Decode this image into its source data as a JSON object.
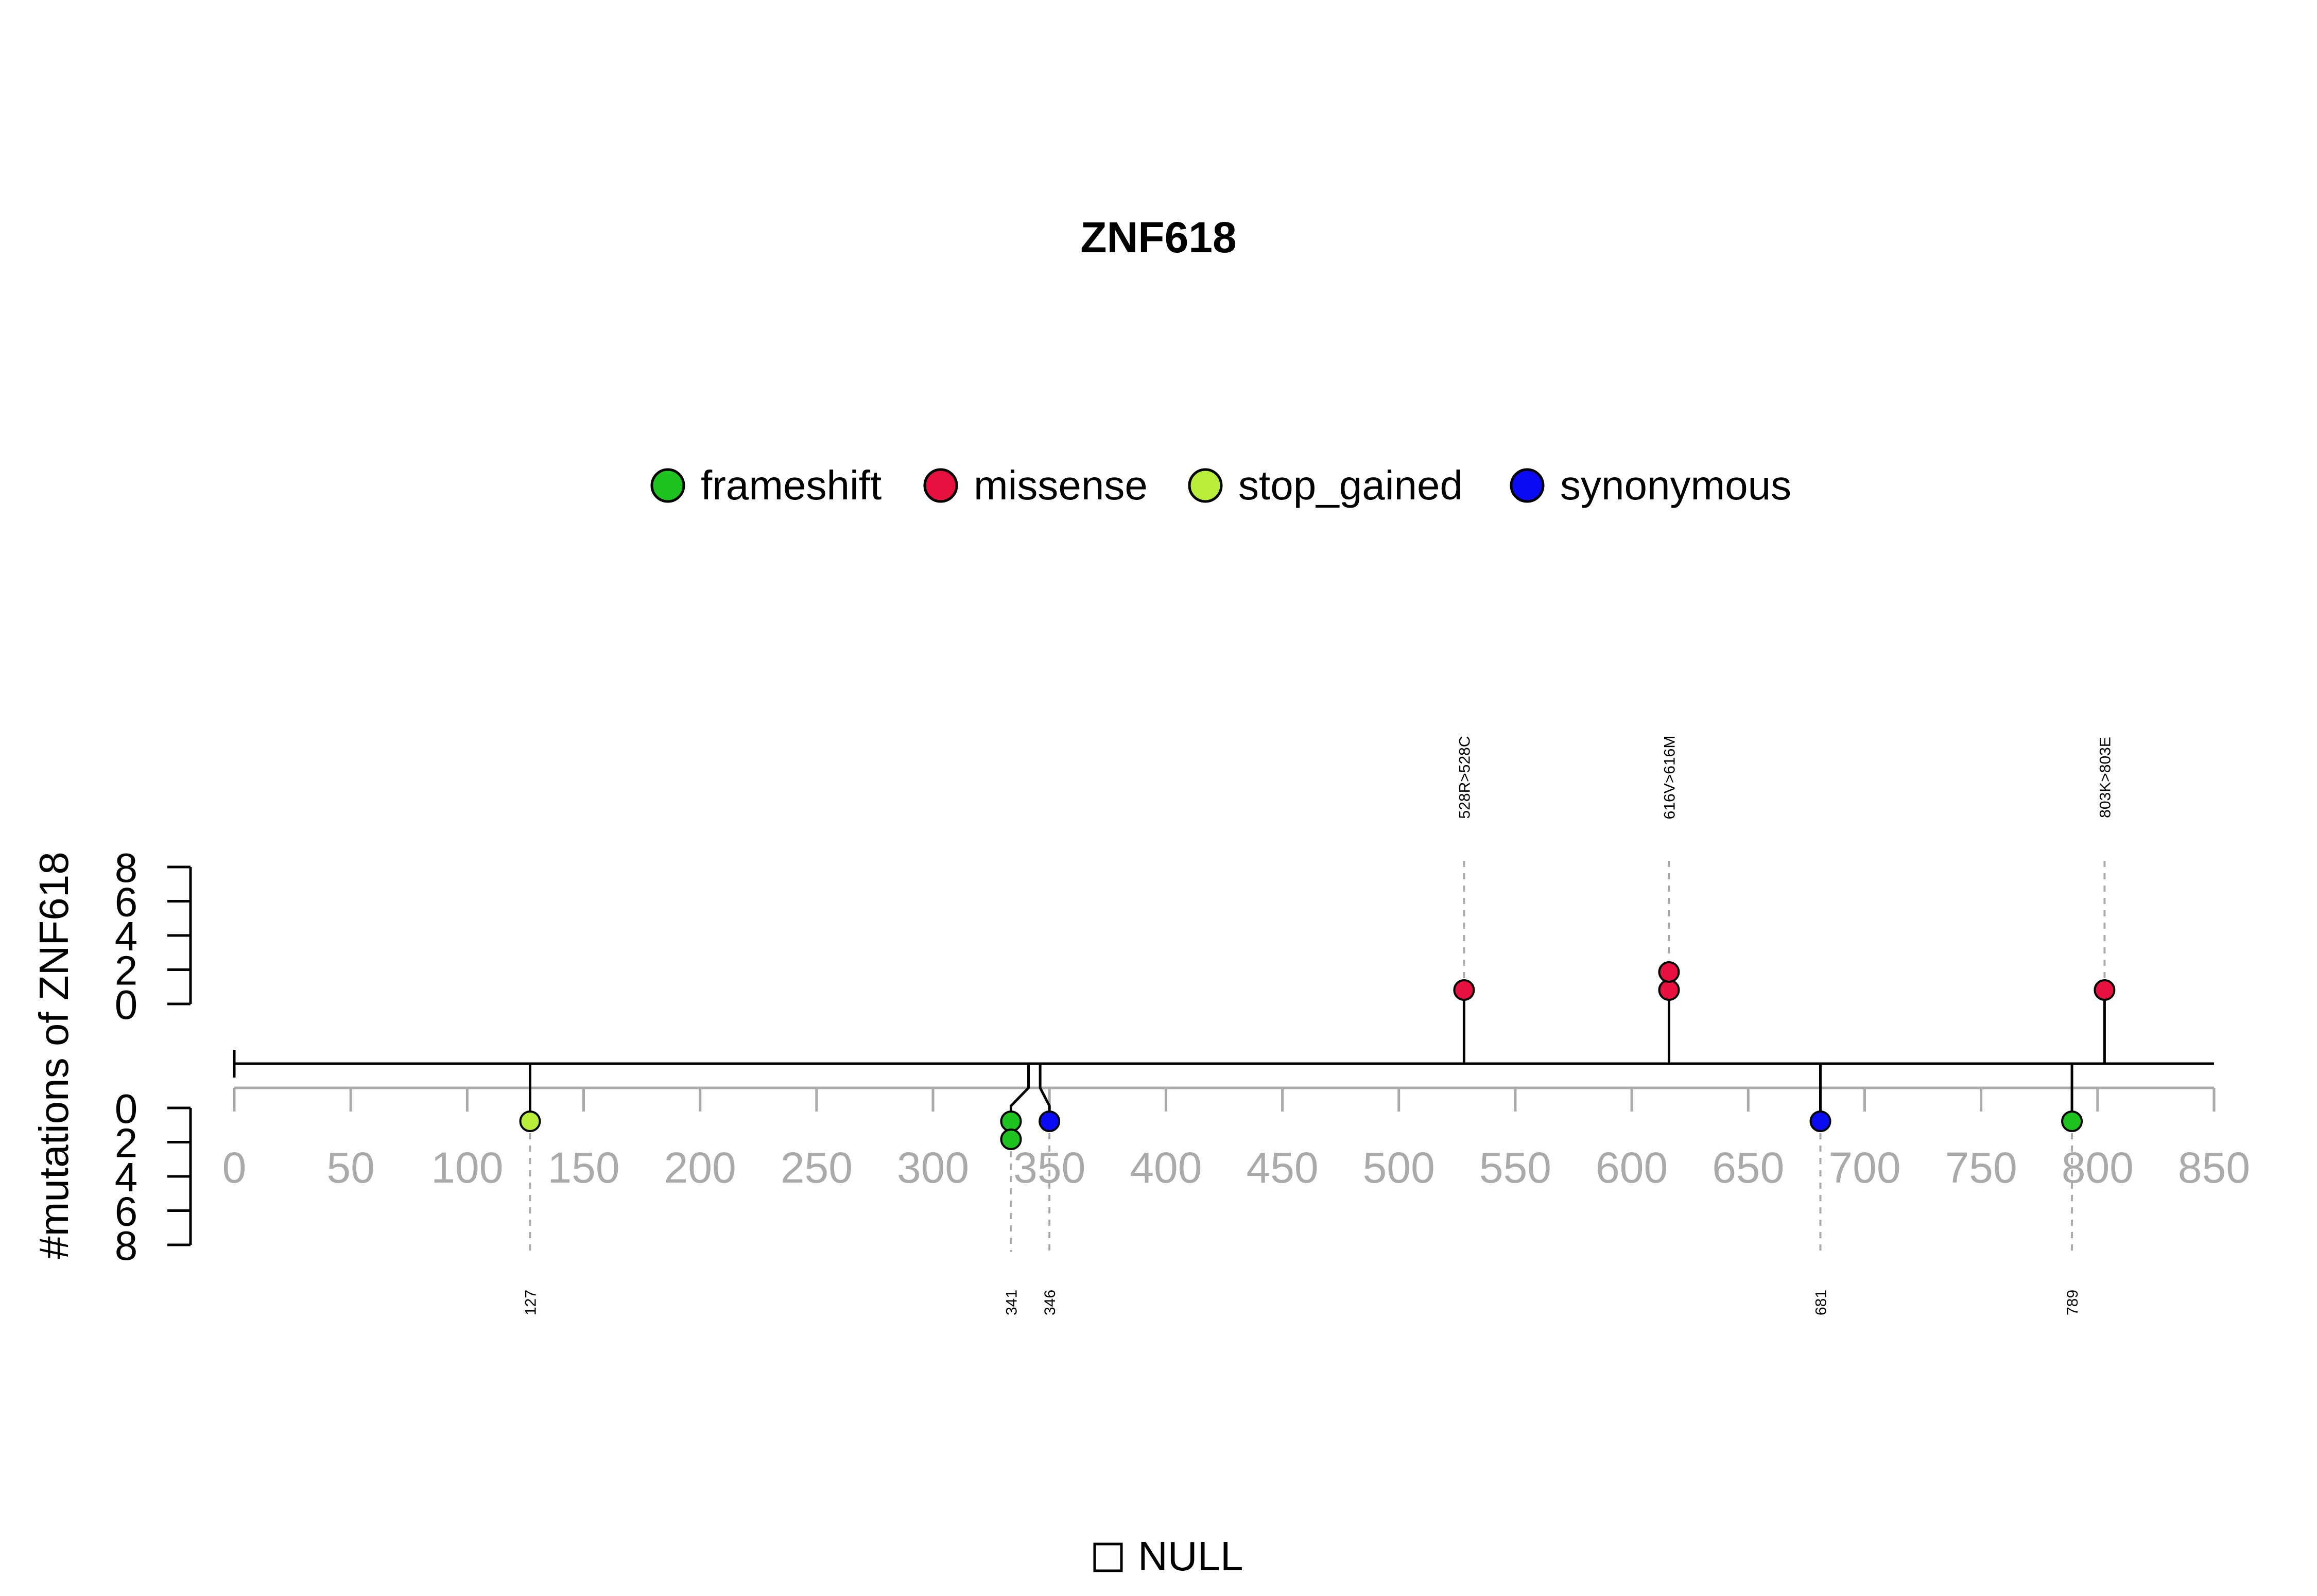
{
  "chart_data": {
    "type": "lollipop",
    "title": "ZNF618",
    "ylabel": "#mutations of ZNF618",
    "xlim": [
      0,
      850
    ],
    "x_ticks": [
      "0",
      "50",
      "100",
      "150",
      "200",
      "250",
      "300",
      "350",
      "400",
      "450",
      "500",
      "550",
      "600",
      "650",
      "700",
      "750",
      "800",
      "850"
    ],
    "y_ticks_top": [
      "8",
      "6",
      "4",
      "2",
      "0"
    ],
    "y_ticks_bottom": [
      "0",
      "2",
      "4",
      "6",
      "8"
    ],
    "legend": [
      {
        "label": "frameshift",
        "color": "#1fc31f"
      },
      {
        "label": "missense",
        "color": "#e8103f"
      },
      {
        "label": "stop_gained",
        "color": "#b8ee3a"
      },
      {
        "label": "synonymous",
        "color": "#0a0af5"
      }
    ],
    "domain_legend": "NULL",
    "top_mutations": [
      {
        "position": 528,
        "label": "528R>528C",
        "type": "missense",
        "count": 1
      },
      {
        "position": 616,
        "label": "616V>616M",
        "type": "missense",
        "count": 2
      },
      {
        "position": 803,
        "label": "803K>803E",
        "type": "missense",
        "count": 1
      }
    ],
    "bottom_mutations": [
      {
        "position": 127,
        "label": "127",
        "type": "stop_gained",
        "count": 1
      },
      {
        "position": 341,
        "label": "341",
        "type": "frameshift",
        "count": 2
      },
      {
        "position": 346,
        "label": "346",
        "type": "synonymous",
        "count": 1
      },
      {
        "position": 681,
        "label": "681",
        "type": "synonymous",
        "count": 1
      },
      {
        "position": 789,
        "label": "789",
        "type": "frameshift",
        "count": 1
      }
    ]
  }
}
